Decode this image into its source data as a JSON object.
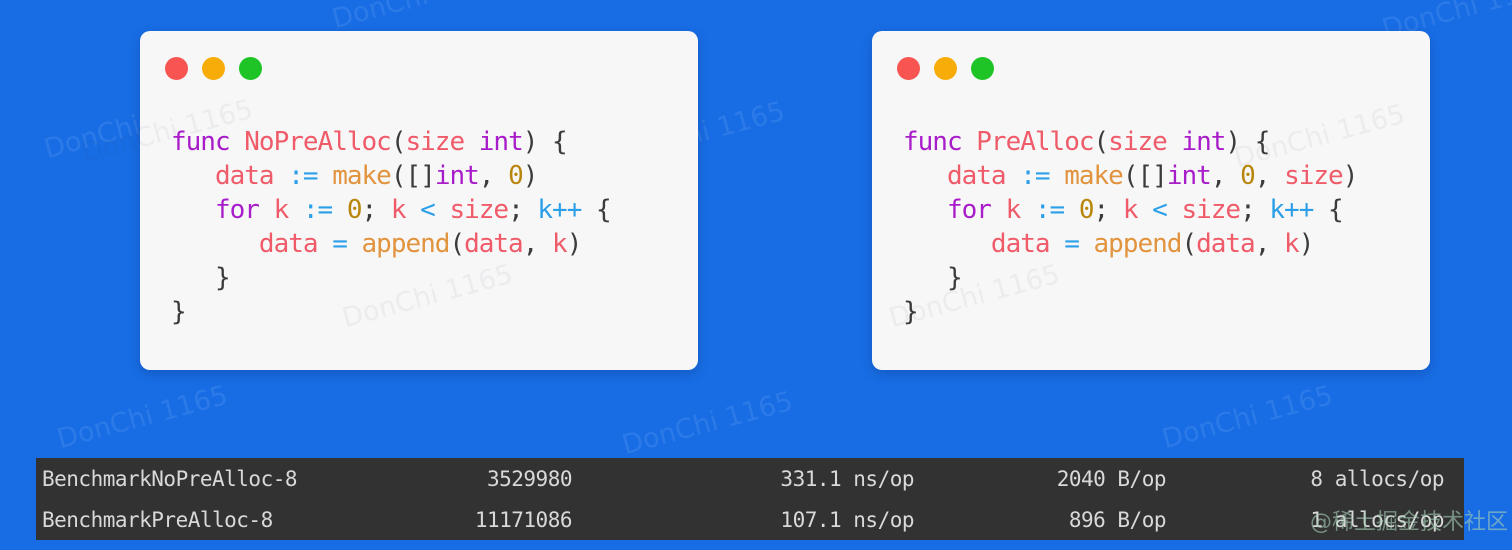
{
  "watermark": {
    "text": "DonChi 1165",
    "brand": "@稀土掘金技术社区"
  },
  "colors": {
    "background": "#186DE5",
    "window_bg": "#F7F7F8",
    "terminal_bg": "#323232",
    "terminal_text": "#D9D9D9",
    "dot_red": "#F85552",
    "dot_yellow": "#F7AC08",
    "dot_green": "#1EC425",
    "code_keyword": "#A81CC9",
    "code_identifier": "#EF5B69",
    "code_operator": "#2B9FE8",
    "code_function": "#E2933D",
    "code_number": "#B9860C",
    "code_punctuation": "#3B3B3B",
    "brand_watermark": "#A5CDB4"
  },
  "windows": [
    {
      "title": "NoPreAlloc",
      "code": [
        [
          {
            "t": "func ",
            "c": "kw"
          },
          {
            "t": "NoPreAlloc",
            "c": "id"
          },
          {
            "t": "(",
            "c": "pu"
          },
          {
            "t": "size",
            "c": "id"
          },
          {
            "t": " ",
            "c": "pu"
          },
          {
            "t": "int",
            "c": "kw"
          },
          {
            "t": ") {",
            "c": "pu"
          }
        ],
        [
          {
            "t": "   ",
            "c": "pu"
          },
          {
            "t": "data",
            "c": "id"
          },
          {
            "t": " ",
            "c": "pu"
          },
          {
            "t": ":=",
            "c": "op"
          },
          {
            "t": " ",
            "c": "pu"
          },
          {
            "t": "make",
            "c": "fn"
          },
          {
            "t": "([]",
            "c": "pu"
          },
          {
            "t": "int",
            "c": "kw"
          },
          {
            "t": ", ",
            "c": "pu"
          },
          {
            "t": "0",
            "c": "num"
          },
          {
            "t": ")",
            "c": "pu"
          }
        ],
        [
          {
            "t": "   ",
            "c": "pu"
          },
          {
            "t": "for",
            "c": "kw"
          },
          {
            "t": " ",
            "c": "pu"
          },
          {
            "t": "k",
            "c": "id"
          },
          {
            "t": " ",
            "c": "pu"
          },
          {
            "t": ":=",
            "c": "op"
          },
          {
            "t": " ",
            "c": "pu"
          },
          {
            "t": "0",
            "c": "num"
          },
          {
            "t": "; ",
            "c": "pu"
          },
          {
            "t": "k",
            "c": "id"
          },
          {
            "t": " ",
            "c": "pu"
          },
          {
            "t": "<",
            "c": "op"
          },
          {
            "t": " ",
            "c": "pu"
          },
          {
            "t": "size",
            "c": "id"
          },
          {
            "t": "; ",
            "c": "pu"
          },
          {
            "t": "k++",
            "c": "op"
          },
          {
            "t": " {",
            "c": "pu"
          }
        ],
        [
          {
            "t": "      ",
            "c": "pu"
          },
          {
            "t": "data",
            "c": "id"
          },
          {
            "t": " ",
            "c": "pu"
          },
          {
            "t": "=",
            "c": "op"
          },
          {
            "t": " ",
            "c": "pu"
          },
          {
            "t": "append",
            "c": "fn"
          },
          {
            "t": "(",
            "c": "pu"
          },
          {
            "t": "data",
            "c": "id"
          },
          {
            "t": ", ",
            "c": "pu"
          },
          {
            "t": "k",
            "c": "id"
          },
          {
            "t": ")",
            "c": "pu"
          }
        ],
        [
          {
            "t": "   }",
            "c": "pu"
          }
        ],
        [
          {
            "t": "}",
            "c": "pu"
          }
        ]
      ]
    },
    {
      "title": "PreAlloc",
      "code": [
        [
          {
            "t": "func ",
            "c": "kw"
          },
          {
            "t": "PreAlloc",
            "c": "id"
          },
          {
            "t": "(",
            "c": "pu"
          },
          {
            "t": "size",
            "c": "id"
          },
          {
            "t": " ",
            "c": "pu"
          },
          {
            "t": "int",
            "c": "kw"
          },
          {
            "t": ") {",
            "c": "pu"
          }
        ],
        [
          {
            "t": "   ",
            "c": "pu"
          },
          {
            "t": "data",
            "c": "id"
          },
          {
            "t": " ",
            "c": "pu"
          },
          {
            "t": ":=",
            "c": "op"
          },
          {
            "t": " ",
            "c": "pu"
          },
          {
            "t": "make",
            "c": "fn"
          },
          {
            "t": "([]",
            "c": "pu"
          },
          {
            "t": "int",
            "c": "kw"
          },
          {
            "t": ", ",
            "c": "pu"
          },
          {
            "t": "0",
            "c": "num"
          },
          {
            "t": ", ",
            "c": "pu"
          },
          {
            "t": "size",
            "c": "id"
          },
          {
            "t": ")",
            "c": "pu"
          }
        ],
        [
          {
            "t": "   ",
            "c": "pu"
          },
          {
            "t": "for",
            "c": "kw"
          },
          {
            "t": " ",
            "c": "pu"
          },
          {
            "t": "k",
            "c": "id"
          },
          {
            "t": " ",
            "c": "pu"
          },
          {
            "t": ":=",
            "c": "op"
          },
          {
            "t": " ",
            "c": "pu"
          },
          {
            "t": "0",
            "c": "num"
          },
          {
            "t": "; ",
            "c": "pu"
          },
          {
            "t": "k",
            "c": "id"
          },
          {
            "t": " ",
            "c": "pu"
          },
          {
            "t": "<",
            "c": "op"
          },
          {
            "t": " ",
            "c": "pu"
          },
          {
            "t": "size",
            "c": "id"
          },
          {
            "t": "; ",
            "c": "pu"
          },
          {
            "t": "k++",
            "c": "op"
          },
          {
            "t": " {",
            "c": "pu"
          }
        ],
        [
          {
            "t": "      ",
            "c": "pu"
          },
          {
            "t": "data",
            "c": "id"
          },
          {
            "t": " ",
            "c": "pu"
          },
          {
            "t": "=",
            "c": "op"
          },
          {
            "t": " ",
            "c": "pu"
          },
          {
            "t": "append",
            "c": "fn"
          },
          {
            "t": "(",
            "c": "pu"
          },
          {
            "t": "data",
            "c": "id"
          },
          {
            "t": ", ",
            "c": "pu"
          },
          {
            "t": "k",
            "c": "id"
          },
          {
            "t": ")",
            "c": "pu"
          }
        ],
        [
          {
            "t": "   }",
            "c": "pu"
          }
        ],
        [
          {
            "t": "}",
            "c": "pu"
          }
        ]
      ]
    }
  ],
  "terminal": {
    "rows": [
      {
        "name": "BenchmarkNoPreAlloc-8",
        "iterations": "3529980",
        "ns_per_op": "331.1 ns/op",
        "bytes_per_op": "2040 B/op",
        "allocs_per_op": "8 allocs/op"
      },
      {
        "name": "BenchmarkPreAlloc-8",
        "iterations": "11171086",
        "ns_per_op": "107.1 ns/op",
        "bytes_per_op": "896 B/op",
        "allocs_per_op": "1 allocs/op"
      }
    ]
  }
}
